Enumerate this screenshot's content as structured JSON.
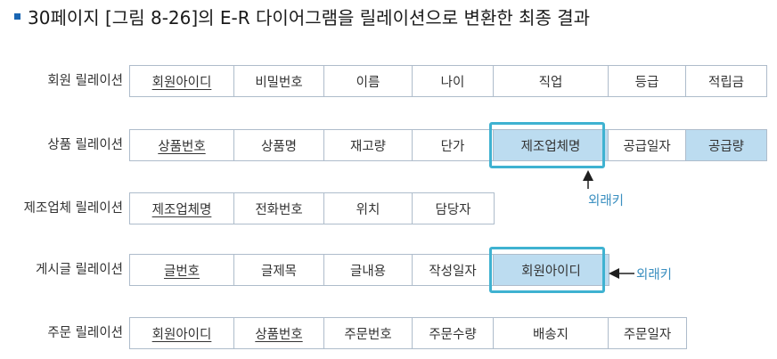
{
  "title": "30페이지 [그림 8-26]의 E-R 다이어그램을 릴레이션으로 변환한 최종 결과",
  "relations": [
    {
      "name": "회원 릴레이션",
      "attributes": [
        {
          "label": "회원아이디",
          "pk": true,
          "fk": false
        },
        {
          "label": "비밀번호",
          "pk": false,
          "fk": false
        },
        {
          "label": "이름",
          "pk": false,
          "fk": false
        },
        {
          "label": "나이",
          "pk": false,
          "fk": false
        },
        {
          "label": "직업",
          "pk": false,
          "fk": false
        },
        {
          "label": "등급",
          "pk": false,
          "fk": false
        },
        {
          "label": "적립금",
          "pk": false,
          "fk": false
        }
      ]
    },
    {
      "name": "상품 릴레이션",
      "attributes": [
        {
          "label": "상품번호",
          "pk": true,
          "fk": false
        },
        {
          "label": "상품명",
          "pk": false,
          "fk": false
        },
        {
          "label": "재고량",
          "pk": false,
          "fk": false
        },
        {
          "label": "단가",
          "pk": false,
          "fk": false
        },
        {
          "label": "제조업체명",
          "pk": false,
          "fk": true
        },
        {
          "label": "공급일자",
          "pk": false,
          "fk": false
        },
        {
          "label": "공급량",
          "pk": false,
          "fk": true
        }
      ]
    },
    {
      "name": "제조업체 릴레이션",
      "attributes": [
        {
          "label": "제조업체명",
          "pk": true,
          "fk": false
        },
        {
          "label": "전화번호",
          "pk": false,
          "fk": false
        },
        {
          "label": "위치",
          "pk": false,
          "fk": false
        },
        {
          "label": "담당자",
          "pk": false,
          "fk": false
        }
      ]
    },
    {
      "name": "게시글 릴레이션",
      "attributes": [
        {
          "label": "글번호",
          "pk": true,
          "fk": false
        },
        {
          "label": "글제목",
          "pk": false,
          "fk": false
        },
        {
          "label": "글내용",
          "pk": false,
          "fk": false
        },
        {
          "label": "작성일자",
          "pk": false,
          "fk": false
        },
        {
          "label": "회원아이디",
          "pk": false,
          "fk": true
        }
      ]
    },
    {
      "name": "주문 릴레이션",
      "attributes": [
        {
          "label": "회원아이디",
          "pk": true,
          "fk": false
        },
        {
          "label": "상품번호",
          "pk": true,
          "fk": false
        },
        {
          "label": "주문번호",
          "pk": false,
          "fk": false
        },
        {
          "label": "주문수량",
          "pk": false,
          "fk": false
        },
        {
          "label": "배송지",
          "pk": false,
          "fk": false
        },
        {
          "label": "주문일자",
          "pk": false,
          "fk": false
        }
      ]
    }
  ],
  "foreign_key_labels": [
    "외래키",
    "외래키"
  ],
  "colors": {
    "accent": "#3fb2d1",
    "fk_fill": "#bcdcf0",
    "fk_text": "#3a8fc0",
    "border": "#aebccb"
  }
}
